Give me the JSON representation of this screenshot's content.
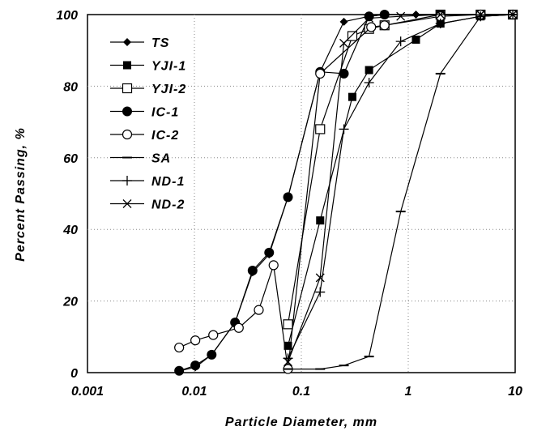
{
  "chart_data": {
    "type": "line",
    "title": "",
    "xlabel": "Particle Diameter, mm",
    "ylabel": "Percent Passing, %",
    "xscale": "log",
    "xlim": [
      0.001,
      10
    ],
    "ylim": [
      0,
      100
    ],
    "x_tick_labels": [
      "0.001",
      "0.01",
      "0.1",
      "1",
      "10"
    ],
    "y_tick_labels": [
      "0",
      "20",
      "40",
      "60",
      "80",
      "100"
    ],
    "grid": "dotted",
    "legend_position": "top-left",
    "series": [
      {
        "name": "TS",
        "marker": "diamond-filled",
        "x": [
          0.0072,
          0.0102,
          0.0145,
          0.024,
          0.035,
          0.05,
          0.075,
          0.15,
          0.25,
          0.43,
          0.6,
          1.18,
          2.0,
          4.75,
          9.5
        ],
        "y": [
          0.5,
          1.5,
          5,
          14,
          28,
          33,
          49,
          84,
          98,
          99.5,
          100,
          100,
          100,
          100,
          100
        ]
      },
      {
        "name": "YJI-1",
        "marker": "square-filled",
        "x": [
          0.075,
          0.15,
          0.3,
          0.43,
          1.18,
          2.0,
          4.75,
          9.5
        ],
        "y": [
          7.5,
          42.5,
          77,
          84.5,
          93,
          97.5,
          99.5,
          100
        ]
      },
      {
        "name": "YJI-2",
        "marker": "square-open",
        "x": [
          0.075,
          0.15,
          0.3,
          0.43,
          0.6,
          2.0,
          4.75,
          9.5
        ],
        "y": [
          13.5,
          68,
          94,
          96,
          97,
          100,
          100,
          100
        ]
      },
      {
        "name": "IC-1",
        "marker": "circle-filled",
        "x": [
          0.0072,
          0.0102,
          0.0145,
          0.024,
          0.035,
          0.05,
          0.075,
          0.15,
          0.25,
          0.43,
          0.6,
          2.0,
          4.75,
          9.5
        ],
        "y": [
          0.5,
          2,
          5,
          14,
          28.5,
          33.5,
          49,
          84,
          83.5,
          99.5,
          100,
          100,
          100,
          100
        ]
      },
      {
        "name": "IC-2",
        "marker": "circle-open",
        "x": [
          0.0072,
          0.0102,
          0.015,
          0.026,
          0.04,
          0.055,
          0.075,
          0.15,
          0.45,
          0.6,
          2.0,
          4.75,
          9.5
        ],
        "y": [
          7,
          9,
          10.5,
          12.5,
          17.5,
          30,
          1,
          83.5,
          96.5,
          97,
          99.5,
          100,
          100
        ]
      },
      {
        "name": "SA",
        "marker": "dash",
        "x": [
          0.075,
          0.15,
          0.25,
          0.43,
          0.85,
          2.0,
          4.75,
          9.5
        ],
        "y": [
          1,
          1,
          2,
          4.5,
          45,
          83.5,
          99.5,
          100
        ]
      },
      {
        "name": "ND-1",
        "marker": "plus",
        "x": [
          0.075,
          0.15,
          0.25,
          0.43,
          0.85,
          2.0,
          4.75,
          9.5
        ],
        "y": [
          4,
          22.5,
          68,
          81,
          92.5,
          97.5,
          99.5,
          100
        ]
      },
      {
        "name": "ND-2",
        "marker": "x",
        "x": [
          0.075,
          0.15,
          0.25,
          0.43,
          0.85,
          2.0,
          4.75,
          9.5
        ],
        "y": [
          3,
          26.5,
          92,
          99,
          99.5,
          100,
          100,
          100
        ]
      }
    ]
  }
}
